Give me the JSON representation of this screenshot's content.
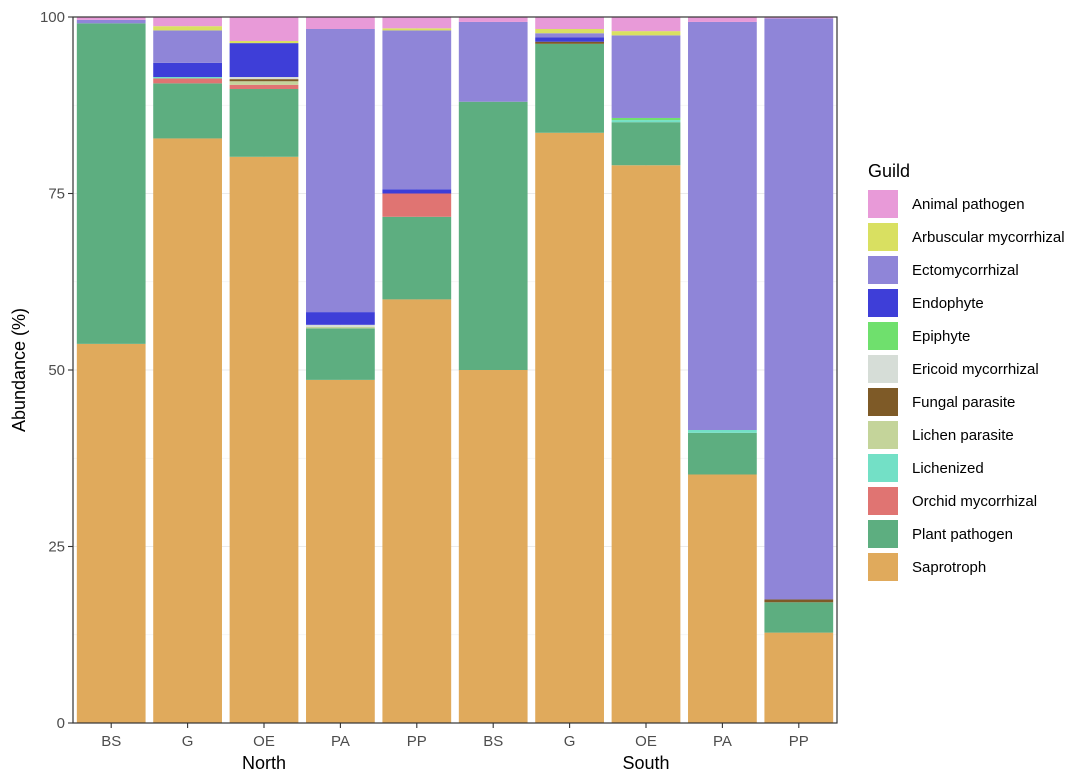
{
  "chart_data": {
    "type": "bar",
    "stacked": true,
    "ylabel": "Abundance (%)",
    "ylim": [
      0,
      100
    ],
    "y_ticks": [
      0,
      25,
      50,
      75,
      100
    ],
    "categories": [
      "BS",
      "G",
      "OE",
      "PA",
      "PP",
      "BS",
      "G",
      "OE",
      "PA",
      "PP"
    ],
    "groups": [
      {
        "label": "North",
        "categories": [
          "BS",
          "G",
          "OE",
          "PA",
          "PP"
        ]
      },
      {
        "label": "South",
        "categories": [
          "BS",
          "G",
          "OE",
          "PA",
          "PP"
        ]
      }
    ],
    "grid": true,
    "legend": {
      "title": "Guild",
      "position": "right"
    },
    "series": [
      {
        "name": "Saprotroph",
        "color": "#E0AA5C",
        "values": [
          53.7,
          82.8,
          80.2,
          48.6,
          60.0,
          50.0,
          83.6,
          79.0,
          35.2,
          12.8
        ]
      },
      {
        "name": "Plant pathogen",
        "color": "#5DAE80",
        "values": [
          45.4,
          7.8,
          9.6,
          7.3,
          11.7,
          38.0,
          12.6,
          6.1,
          5.9,
          4.3
        ]
      },
      {
        "name": "Orchid mycorrhizal",
        "color": "#E07472",
        "values": [
          0.0,
          0.7,
          0.6,
          0.0,
          3.3,
          0.0,
          0.0,
          0.0,
          0.0,
          0.0
        ]
      },
      {
        "name": "Lichenized",
        "color": "#73E0C6",
        "values": [
          0.0,
          0.2,
          0.0,
          0.0,
          0.0,
          0.0,
          0.0,
          0.3,
          0.4,
          0.0
        ]
      },
      {
        "name": "Lichen parasite",
        "color": "#C4D49A",
        "values": [
          0.0,
          0.0,
          0.5,
          0.2,
          0.0,
          0.0,
          0.0,
          0.0,
          0.0,
          0.0
        ]
      },
      {
        "name": "Fungal parasite",
        "color": "#7E5A27",
        "values": [
          0.0,
          0.0,
          0.3,
          0.0,
          0.0,
          0.0,
          0.3,
          0.0,
          0.0,
          0.4
        ]
      },
      {
        "name": "Ericoid mycorrhizal",
        "color": "#D6DDD7",
        "values": [
          0.0,
          0.0,
          0.3,
          0.3,
          0.0,
          0.0,
          0.0,
          0.0,
          0.0,
          0.0
        ]
      },
      {
        "name": "Epiphyte",
        "color": "#6FE06D",
        "values": [
          0.0,
          0.0,
          0.0,
          0.0,
          0.0,
          0.0,
          0.0,
          0.3,
          0.0,
          0.0
        ]
      },
      {
        "name": "Endophyte",
        "color": "#3E3ED8",
        "values": [
          0.0,
          2.0,
          4.8,
          1.8,
          0.6,
          0.0,
          0.6,
          0.0,
          0.0,
          0.0
        ]
      },
      {
        "name": "Ectomycorrhizal",
        "color": "#8F85D8",
        "values": [
          0.5,
          4.6,
          0.0,
          40.1,
          22.5,
          11.3,
          0.6,
          11.7,
          57.8,
          82.3
        ]
      },
      {
        "name": "Arbuscular mycorrhizal",
        "color": "#D9E061",
        "values": [
          0.0,
          0.6,
          0.3,
          0.0,
          0.3,
          0.0,
          0.6,
          0.6,
          0.0,
          0.0
        ]
      },
      {
        "name": "Animal pathogen",
        "color": "#E89AD8",
        "values": [
          0.4,
          1.3,
          3.4,
          1.7,
          1.6,
          0.7,
          1.7,
          2.0,
          0.7,
          0.2
        ]
      }
    ],
    "legend_order": [
      "Animal pathogen",
      "Arbuscular mycorrhizal",
      "Ectomycorrhizal",
      "Endophyte",
      "Epiphyte",
      "Ericoid mycorrhizal",
      "Fungal parasite",
      "Lichen parasite",
      "Lichenized",
      "Orchid mycorrhizal",
      "Plant pathogen",
      "Saprotroph"
    ]
  }
}
